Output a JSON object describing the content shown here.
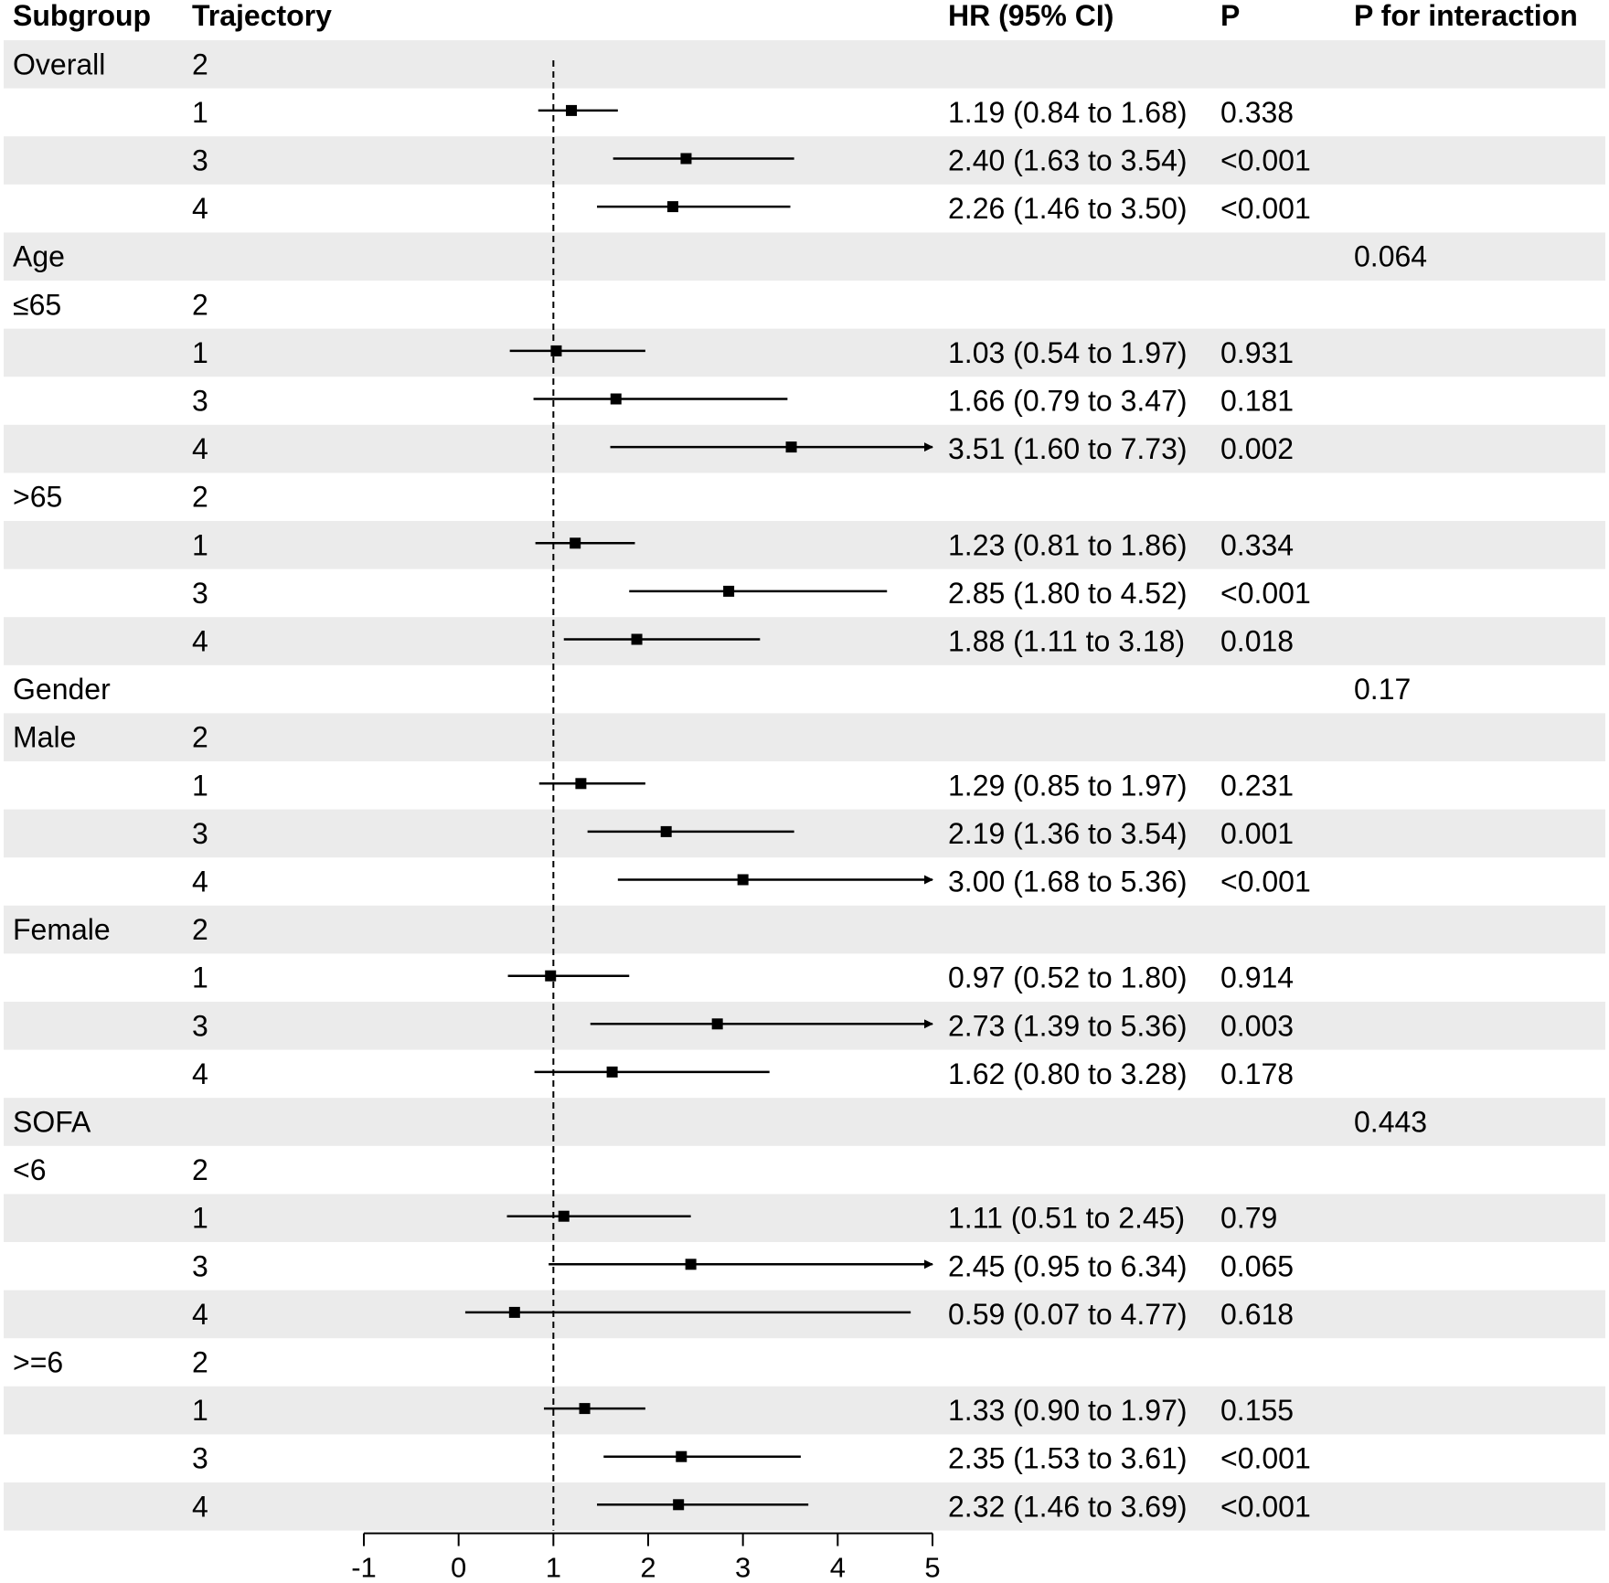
{
  "chart_data": {
    "type": "forest",
    "title": "",
    "headers": {
      "subgroup": "Subgroup",
      "trajectory": "Trajectory",
      "hr": "HR (95% CI)",
      "p": "P",
      "p_interaction": "P for interaction"
    },
    "reference_line": 1,
    "x_axis": {
      "min": -1,
      "max": 5,
      "ticks": [
        "-1",
        "0",
        "1",
        "2",
        "3",
        "4",
        "5"
      ]
    },
    "rows": [
      {
        "subgroup": "Overall",
        "trajectory": "2",
        "hr": null,
        "lo": null,
        "hi": null,
        "hr_text": "",
        "p": "",
        "p_interaction": ""
      },
      {
        "subgroup": "",
        "trajectory": "1",
        "hr": 1.19,
        "lo": 0.84,
        "hi": 1.68,
        "hr_text": "1.19 (0.84 to 1.68)",
        "p": "0.338",
        "p_interaction": ""
      },
      {
        "subgroup": "",
        "trajectory": "3",
        "hr": 2.4,
        "lo": 1.63,
        "hi": 3.54,
        "hr_text": "2.40 (1.63 to 3.54)",
        "p": "<0.001",
        "p_interaction": ""
      },
      {
        "subgroup": "",
        "trajectory": "4",
        "hr": 2.26,
        "lo": 1.46,
        "hi": 3.5,
        "hr_text": "2.26 (1.46 to 3.50)",
        "p": "<0.001",
        "p_interaction": ""
      },
      {
        "subgroup": "Age",
        "trajectory": "",
        "hr": null,
        "lo": null,
        "hi": null,
        "hr_text": "",
        "p": "",
        "p_interaction": "0.064"
      },
      {
        "subgroup": "≤65",
        "trajectory": "2",
        "hr": null,
        "lo": null,
        "hi": null,
        "hr_text": "",
        "p": "",
        "p_interaction": ""
      },
      {
        "subgroup": "",
        "trajectory": "1",
        "hr": 1.03,
        "lo": 0.54,
        "hi": 1.97,
        "hr_text": "1.03 (0.54 to 1.97)",
        "p": "0.931",
        "p_interaction": ""
      },
      {
        "subgroup": "",
        "trajectory": "3",
        "hr": 1.66,
        "lo": 0.79,
        "hi": 3.47,
        "hr_text": "1.66 (0.79 to 3.47)",
        "p": "0.181",
        "p_interaction": ""
      },
      {
        "subgroup": "",
        "trajectory": "4",
        "hr": 3.51,
        "lo": 1.6,
        "hi": 7.73,
        "hr_text": "3.51 (1.60 to 7.73)",
        "p": "0.002",
        "p_interaction": ""
      },
      {
        "subgroup": ">65",
        "trajectory": "2",
        "hr": null,
        "lo": null,
        "hi": null,
        "hr_text": "",
        "p": "",
        "p_interaction": ""
      },
      {
        "subgroup": "",
        "trajectory": "1",
        "hr": 1.23,
        "lo": 0.81,
        "hi": 1.86,
        "hr_text": "1.23 (0.81 to 1.86)",
        "p": "0.334",
        "p_interaction": ""
      },
      {
        "subgroup": "",
        "trajectory": "3",
        "hr": 2.85,
        "lo": 1.8,
        "hi": 4.52,
        "hr_text": "2.85 (1.80 to 4.52)",
        "p": "<0.001",
        "p_interaction": ""
      },
      {
        "subgroup": "",
        "trajectory": "4",
        "hr": 1.88,
        "lo": 1.11,
        "hi": 3.18,
        "hr_text": "1.88 (1.11 to 3.18)",
        "p": "0.018",
        "p_interaction": ""
      },
      {
        "subgroup": "Gender",
        "trajectory": "",
        "hr": null,
        "lo": null,
        "hi": null,
        "hr_text": "",
        "p": "",
        "p_interaction": "0.17"
      },
      {
        "subgroup": "Male",
        "trajectory": "2",
        "hr": null,
        "lo": null,
        "hi": null,
        "hr_text": "",
        "p": "",
        "p_interaction": ""
      },
      {
        "subgroup": "",
        "trajectory": "1",
        "hr": 1.29,
        "lo": 0.85,
        "hi": 1.97,
        "hr_text": "1.29 (0.85 to 1.97)",
        "p": "0.231",
        "p_interaction": ""
      },
      {
        "subgroup": "",
        "trajectory": "3",
        "hr": 2.19,
        "lo": 1.36,
        "hi": 3.54,
        "hr_text": "2.19 (1.36 to 3.54)",
        "p": "0.001",
        "p_interaction": ""
      },
      {
        "subgroup": "",
        "trajectory": "4",
        "hr": 3.0,
        "lo": 1.68,
        "hi": 5.36,
        "hr_text": "3.00 (1.68 to 5.36)",
        "p": "<0.001",
        "p_interaction": ""
      },
      {
        "subgroup": "Female",
        "trajectory": "2",
        "hr": null,
        "lo": null,
        "hi": null,
        "hr_text": "",
        "p": "",
        "p_interaction": ""
      },
      {
        "subgroup": "",
        "trajectory": "1",
        "hr": 0.97,
        "lo": 0.52,
        "hi": 1.8,
        "hr_text": "0.97 (0.52 to 1.80)",
        "p": "0.914",
        "p_interaction": ""
      },
      {
        "subgroup": "",
        "trajectory": "3",
        "hr": 2.73,
        "lo": 1.39,
        "hi": 5.36,
        "hr_text": "2.73 (1.39 to 5.36)",
        "p": "0.003",
        "p_interaction": ""
      },
      {
        "subgroup": "",
        "trajectory": "4",
        "hr": 1.62,
        "lo": 0.8,
        "hi": 3.28,
        "hr_text": "1.62 (0.80 to 3.28)",
        "p": "0.178",
        "p_interaction": ""
      },
      {
        "subgroup": "SOFA",
        "trajectory": "",
        "hr": null,
        "lo": null,
        "hi": null,
        "hr_text": "",
        "p": "",
        "p_interaction": "0.443"
      },
      {
        "subgroup": "<6",
        "trajectory": "2",
        "hr": null,
        "lo": null,
        "hi": null,
        "hr_text": "",
        "p": "",
        "p_interaction": ""
      },
      {
        "subgroup": "",
        "trajectory": "1",
        "hr": 1.11,
        "lo": 0.51,
        "hi": 2.45,
        "hr_text": "1.11 (0.51 to 2.45)",
        "p": "0.79",
        "p_interaction": ""
      },
      {
        "subgroup": "",
        "trajectory": "3",
        "hr": 2.45,
        "lo": 0.95,
        "hi": 6.34,
        "hr_text": "2.45 (0.95 to 6.34)",
        "p": "0.065",
        "p_interaction": ""
      },
      {
        "subgroup": "",
        "trajectory": "4",
        "hr": 0.59,
        "lo": 0.07,
        "hi": 4.77,
        "hr_text": "0.59 (0.07 to 4.77)",
        "p": "0.618",
        "p_interaction": ""
      },
      {
        "subgroup": ">=6",
        "trajectory": "2",
        "hr": null,
        "lo": null,
        "hi": null,
        "hr_text": "",
        "p": "",
        "p_interaction": ""
      },
      {
        "subgroup": "",
        "trajectory": "1",
        "hr": 1.33,
        "lo": 0.9,
        "hi": 1.97,
        "hr_text": "1.33 (0.90 to 1.97)",
        "p": "0.155",
        "p_interaction": ""
      },
      {
        "subgroup": "",
        "trajectory": "3",
        "hr": 2.35,
        "lo": 1.53,
        "hi": 3.61,
        "hr_text": "2.35 (1.53 to 3.61)",
        "p": "<0.001",
        "p_interaction": ""
      },
      {
        "subgroup": "",
        "trajectory": "4",
        "hr": 2.32,
        "lo": 1.46,
        "hi": 3.69,
        "hr_text": "2.32 (1.46 to 3.69)",
        "p": "<0.001",
        "p_interaction": ""
      }
    ],
    "colors": {
      "stripe": "#ebebeb",
      "mark": "#000000",
      "text": "#000000"
    }
  }
}
